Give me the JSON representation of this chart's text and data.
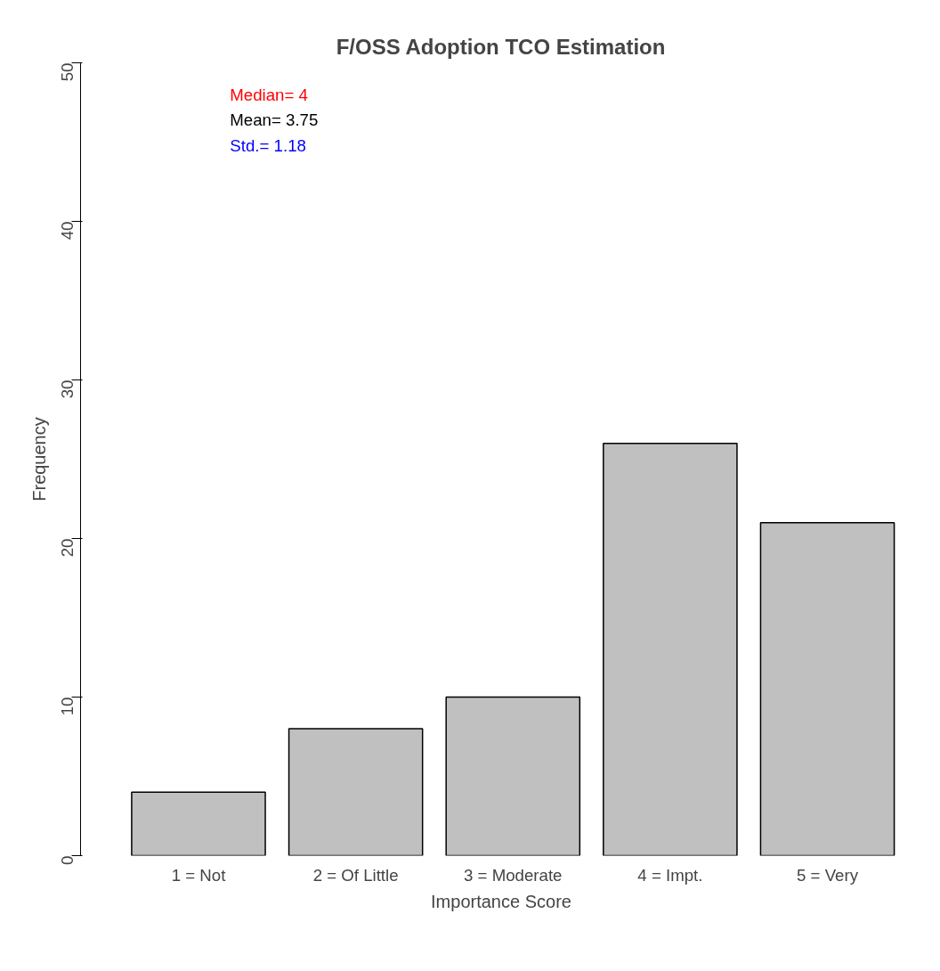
{
  "chart_data": {
    "type": "bar",
    "title": "F/OSS Adoption TCO Estimation",
    "xlabel": "Importance Score",
    "ylabel": "Frequency",
    "categories": [
      "1 = Not",
      "2 = Of Little",
      "3 = Moderate",
      "4 = Impt.",
      "5 = Very"
    ],
    "values": [
      4,
      8,
      10,
      26,
      21
    ],
    "color": "#c0c0c0",
    "ylim": [
      0,
      50
    ],
    "yticks": [
      0,
      10,
      20,
      30,
      40,
      50
    ],
    "grid": false,
    "annotations": [
      "Median= 4",
      "Mean= 3.75",
      "Std.= 1.18"
    ]
  }
}
